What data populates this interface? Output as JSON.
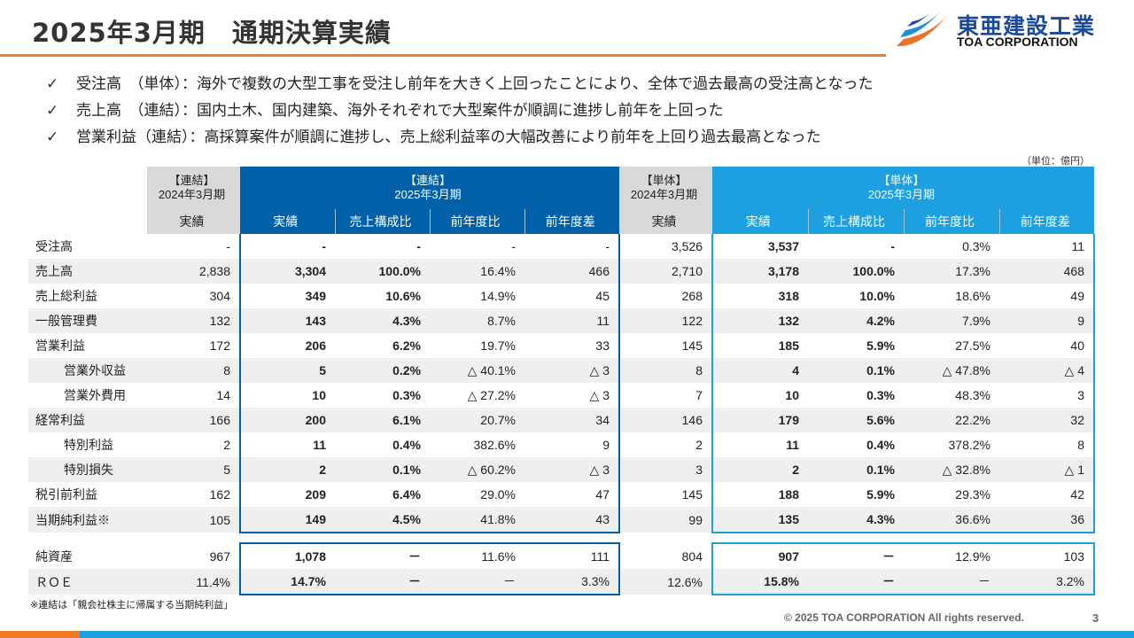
{
  "title": "2025年3月期　通期決算実績",
  "logo": {
    "kanji": "東亜建設工業",
    "corp": "TOA CORPORATION"
  },
  "bullets": [
    {
      "check": "✓",
      "text": "受注高　（単体）：海外で複数の大型工事を受注し前年を大きく上回ったことにより、全体で過去最高の受注高となった"
    },
    {
      "check": "✓",
      "text": "売上高　（連結）：国内土木、国内建築、海外それぞれで大型案件が順調に進捗し前年を上回った"
    },
    {
      "check": "✓",
      "text": "営業利益（連結）：高採算案件が順調に進捗し、売上総利益率の大幅改善により前年を上回り過去最高となった"
    }
  ],
  "unit": "（単位：億円）",
  "table": {
    "groups": {
      "cons_prev_1": "【連結】",
      "cons_prev_2": "2024年3月期",
      "cons_cur_1": "【連結】",
      "cons_cur_2": "2025年3月期",
      "solo_prev_1": "【単体】",
      "solo_prev_2": "2024年3月期",
      "solo_cur_1": "【単体】",
      "solo_cur_2": "2025年3月期"
    },
    "sub": [
      "実績",
      "実績",
      "売上構成比",
      "前年度比",
      "前年度差",
      "実績",
      "実績",
      "売上構成比",
      "前年度比",
      "前年度差"
    ],
    "rows": [
      {
        "label": "受注高",
        "c": [
          "-",
          "-",
          "-",
          "-",
          "-",
          "3,526",
          "3,537",
          "-",
          "0.3%",
          "11"
        ]
      },
      {
        "label": "売上高",
        "c": [
          "2,838",
          "3,304",
          "100.0%",
          "16.4%",
          "466",
          "2,710",
          "3,178",
          "100.0%",
          "17.3%",
          "468"
        ]
      },
      {
        "label": "売上総利益",
        "c": [
          "304",
          "349",
          "10.6%",
          "14.9%",
          "45",
          "268",
          "318",
          "10.0%",
          "18.6%",
          "49"
        ]
      },
      {
        "label": "一般管理費",
        "c": [
          "132",
          "143",
          "4.3%",
          "8.7%",
          "11",
          "122",
          "132",
          "4.2%",
          "7.9%",
          "9"
        ]
      },
      {
        "label": "営業利益",
        "c": [
          "172",
          "206",
          "6.2%",
          "19.7%",
          "33",
          "145",
          "185",
          "5.9%",
          "27.5%",
          "40"
        ]
      },
      {
        "label": "営業外収益",
        "c": [
          "8",
          "5",
          "0.2%",
          "△ 40.1%",
          "△ 3",
          "8",
          "4",
          "0.1%",
          "△ 47.8%",
          "△ 4"
        ]
      },
      {
        "label": "営業外費用",
        "c": [
          "14",
          "10",
          "0.3%",
          "△ 27.2%",
          "△ 3",
          "7",
          "10",
          "0.3%",
          "48.3%",
          "3"
        ]
      },
      {
        "label": "経常利益",
        "c": [
          "166",
          "200",
          "6.1%",
          "20.7%",
          "34",
          "146",
          "179",
          "5.6%",
          "22.2%",
          "32"
        ]
      },
      {
        "label": "特別利益",
        "c": [
          "2",
          "11",
          "0.4%",
          "382.6%",
          "9",
          "2",
          "11",
          "0.4%",
          "378.2%",
          "8"
        ]
      },
      {
        "label": "特別損失",
        "c": [
          "5",
          "2",
          "0.1%",
          "△ 60.2%",
          "△ 3",
          "3",
          "2",
          "0.1%",
          "△ 32.8%",
          "△ 1"
        ]
      },
      {
        "label": "税引前利益",
        "c": [
          "162",
          "209",
          "6.4%",
          "29.0%",
          "47",
          "145",
          "188",
          "5.9%",
          "29.3%",
          "42"
        ]
      },
      {
        "label": "当期純利益※",
        "c": [
          "105",
          "149",
          "4.5%",
          "41.8%",
          "43",
          "99",
          "135",
          "4.3%",
          "36.6%",
          "36"
        ]
      }
    ],
    "rows2": [
      {
        "label": "純資産",
        "c": [
          "967",
          "1,078",
          "－",
          "11.6%",
          "111",
          "804",
          "907",
          "－",
          "12.9%",
          "103"
        ]
      },
      {
        "label": "ＲＯＥ",
        "c": [
          "11.4%",
          "14.7%",
          "－",
          "－",
          "3.3%",
          "12.6%",
          "15.8%",
          "－",
          "－",
          "3.2%"
        ]
      }
    ]
  },
  "footnote": "※連結は「親会社株主に帰属する当期純利益」",
  "copyright": "© 2025 TOA CORPORATION  All rights reserved.",
  "page_number": "3",
  "colors": {
    "accent_orange": "#f07c28",
    "dark_blue": "#0060a8",
    "light_blue": "#1e9fe0",
    "header_gray": "#d9d9d9"
  }
}
